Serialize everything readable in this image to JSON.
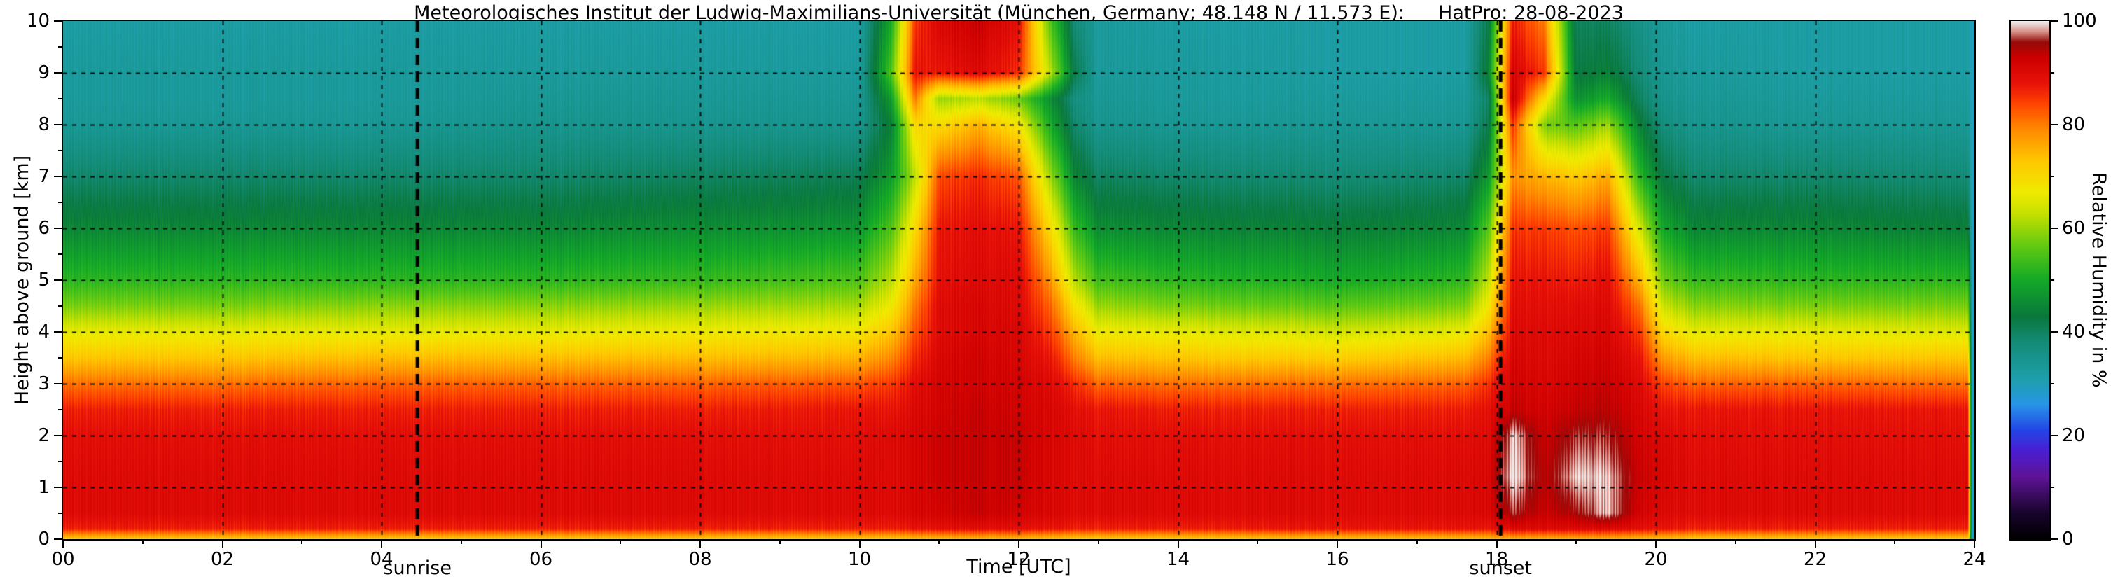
{
  "chart_data": {
    "type": "heatmap",
    "title": "Meteorologisches Institut der Ludwig-Maximilians-Universität (München, Germany; 48.148 N / 11.573 E):",
    "subtitle": "HatPro: 28-08-2023",
    "xlabel": "Time [UTC]",
    "ylabel": "Height above ground [km]",
    "zlabel": "Relative Humidity in %",
    "xlim": [
      0,
      24
    ],
    "ylim": [
      0,
      10
    ],
    "zlim": [
      0,
      100
    ],
    "grid": true,
    "x_ticks": [
      "00",
      "02",
      "04",
      "06",
      "08",
      "10",
      "12",
      "14",
      "16",
      "18",
      "20",
      "22",
      "24"
    ],
    "y_ticks": [
      0,
      1,
      2,
      3,
      4,
      5,
      6,
      7,
      8,
      9,
      10
    ],
    "z_ticks": [
      0,
      20,
      40,
      60,
      80,
      100
    ],
    "annotations": [
      {
        "label": "sunrise",
        "time": 4.45
      },
      {
        "label": "sunset",
        "time": 18.05
      }
    ],
    "colormap_stops": [
      [
        0,
        "#000000"
      ],
      [
        5,
        "#19052d"
      ],
      [
        12,
        "#5f1496"
      ],
      [
        17,
        "#4b1ed2"
      ],
      [
        21,
        "#2346e6"
      ],
      [
        26,
        "#2896e6"
      ],
      [
        31,
        "#1ea0aa"
      ],
      [
        38,
        "#148c78"
      ],
      [
        43,
        "#0a783c"
      ],
      [
        50,
        "#14aa28"
      ],
      [
        56,
        "#5ac814"
      ],
      [
        63,
        "#c8e100"
      ],
      [
        67,
        "#f0eb00"
      ],
      [
        73,
        "#ffc800"
      ],
      [
        79,
        "#ff8c00"
      ],
      [
        84,
        "#ff4600"
      ],
      [
        88,
        "#e8120a"
      ],
      [
        93,
        "#cd0000"
      ],
      [
        96,
        "#960a0a"
      ],
      [
        98,
        "#d79187"
      ],
      [
        100,
        "#f0f0f0"
      ]
    ],
    "x_hours": [
      0,
      2,
      4,
      6,
      8,
      10,
      10.4,
      10.7,
      11,
      11.5,
      12,
      12.4,
      12.7,
      13,
      14,
      16,
      17.6,
      17.9,
      18.2,
      18.6,
      19,
      19.4,
      19.8,
      20.1,
      20.5,
      22,
      23.92,
      23.97,
      24
    ],
    "y_km": [
      0,
      0.2,
      0.5,
      1.2,
      2,
      2.5,
      3,
      3.5,
      4,
      4.5,
      5,
      6,
      7,
      8,
      8.5,
      9,
      10
    ],
    "z_humidity_percent_columns": [
      [
        72,
        87,
        90,
        90,
        89,
        87,
        81,
        73,
        66,
        58,
        52,
        45,
        39,
        34,
        33,
        33,
        32
      ],
      [
        72,
        87,
        90,
        90,
        89,
        87,
        81,
        73,
        66,
        58,
        52,
        45,
        39,
        34,
        33,
        33,
        32
      ],
      [
        72,
        87,
        90,
        90,
        89,
        87,
        82,
        74,
        66,
        59,
        52,
        45,
        39,
        34,
        33,
        33,
        32
      ],
      [
        72,
        87,
        90,
        90,
        89,
        87,
        82,
        74,
        66,
        59,
        52,
        45,
        39,
        35,
        34,
        33,
        32
      ],
      [
        72,
        87,
        90,
        90,
        89,
        87,
        82,
        74,
        67,
        60,
        53,
        46,
        40,
        35,
        34,
        33,
        32
      ],
      [
        72,
        87,
        90,
        90,
        89,
        88,
        83,
        75,
        68,
        61,
        55,
        47,
        41,
        35,
        34,
        33,
        32
      ],
      [
        72,
        87,
        90,
        90,
        90,
        88,
        85,
        79,
        73,
        67,
        62,
        55,
        48,
        44,
        48,
        55,
        50
      ],
      [
        73,
        88,
        91,
        91,
        91,
        90,
        89,
        86,
        83,
        80,
        76,
        70,
        62,
        70,
        80,
        88,
        85
      ],
      [
        74,
        89,
        92,
        93,
        93,
        92,
        92,
        91,
        90,
        90,
        89,
        88,
        84,
        70,
        60,
        88,
        91
      ],
      [
        74,
        89,
        93,
        93,
        93,
        93,
        92,
        92,
        91,
        91,
        90,
        89,
        86,
        75,
        62,
        90,
        93
      ],
      [
        74,
        89,
        92,
        93,
        93,
        92,
        92,
        91,
        91,
        90,
        90,
        88,
        83,
        68,
        57,
        86,
        89
      ],
      [
        73,
        88,
        91,
        91,
        91,
        91,
        90,
        88,
        85,
        82,
        78,
        70,
        60,
        50,
        46,
        62,
        55
      ],
      [
        72,
        87,
        90,
        90,
        90,
        89,
        86,
        80,
        75,
        69,
        62,
        53,
        45,
        39,
        37,
        42,
        38
      ],
      [
        72,
        87,
        90,
        90,
        89,
        88,
        82,
        74,
        67,
        60,
        54,
        46,
        40,
        35,
        34,
        33,
        33
      ],
      [
        72,
        87,
        90,
        90,
        89,
        87,
        81,
        73,
        66,
        58,
        52,
        45,
        39,
        34,
        33,
        33,
        32
      ],
      [
        73,
        88,
        90,
        90,
        89,
        87,
        81,
        72,
        64,
        56,
        50,
        44,
        38,
        34,
        33,
        32,
        32
      ],
      [
        73,
        88,
        90,
        90,
        89,
        87,
        82,
        74,
        66,
        58,
        52,
        45,
        39,
        34,
        33,
        32,
        32
      ],
      [
        74,
        88,
        91,
        91,
        90,
        89,
        86,
        80,
        74,
        68,
        63,
        56,
        48,
        42,
        40,
        45,
        42
      ],
      [
        75,
        90,
        96,
        100,
        99,
        93,
        92,
        91,
        90,
        89,
        88,
        85,
        78,
        85,
        93,
        91,
        87
      ],
      [
        75,
        90,
        93,
        94,
        93,
        92,
        91,
        90,
        90,
        89,
        88,
        85,
        75,
        58,
        70,
        85,
        80
      ],
      [
        75,
        90,
        95,
        99,
        96,
        93,
        92,
        91,
        90,
        89,
        87,
        83,
        72,
        55,
        46,
        42,
        40
      ],
      [
        75,
        90,
        99,
        99,
        96,
        94,
        93,
        92,
        91,
        90,
        89,
        85,
        76,
        60,
        50,
        44,
        40
      ],
      [
        74,
        89,
        92,
        93,
        92,
        91,
        90,
        88,
        85,
        81,
        75,
        64,
        52,
        44,
        40,
        38,
        36
      ],
      [
        73,
        88,
        90,
        91,
        90,
        88,
        84,
        77,
        70,
        63,
        57,
        49,
        42,
        37,
        35,
        34,
        33
      ],
      [
        72,
        87,
        90,
        90,
        89,
        88,
        82,
        74,
        66,
        59,
        53,
        45,
        39,
        35,
        34,
        33,
        32
      ],
      [
        72,
        87,
        90,
        90,
        89,
        88,
        82,
        73,
        66,
        58,
        52,
        45,
        39,
        34,
        33,
        32,
        32
      ],
      [
        72,
        87,
        90,
        90,
        89,
        88,
        81,
        73,
        65,
        58,
        52,
        44,
        38,
        34,
        33,
        32,
        32
      ],
      [
        29,
        29,
        29,
        29,
        29,
        29,
        29,
        29,
        29,
        29,
        29,
        29,
        29,
        29,
        29,
        29,
        29
      ],
      [
        29,
        29,
        29,
        29,
        29,
        29,
        29,
        29,
        29,
        29,
        29,
        29,
        29,
        29,
        29,
        29,
        29
      ]
    ]
  }
}
